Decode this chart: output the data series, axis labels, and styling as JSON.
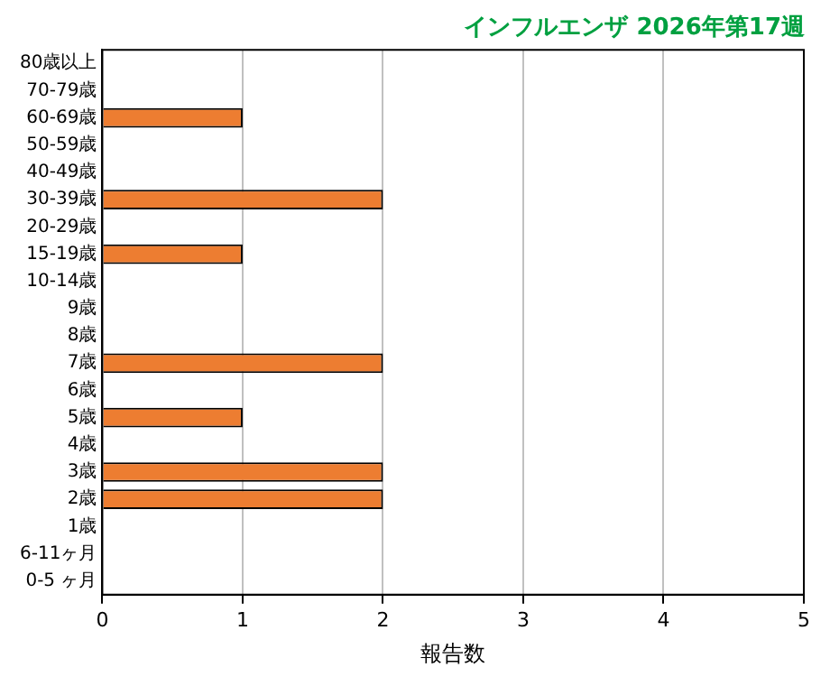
{
  "chart_data": {
    "type": "bar",
    "orientation": "horizontal",
    "title": "インフルエンザ 2026年第17週",
    "xlabel": "報告数",
    "categories": [
      "80歳以上",
      "70-79歳",
      "60-69歳",
      "50-59歳",
      "40-49歳",
      "30-39歳",
      "20-29歳",
      "15-19歳",
      "10-14歳",
      "9歳",
      "8歳",
      "7歳",
      "6歳",
      "5歳",
      "4歳",
      "3歳",
      "2歳",
      "1歳",
      "6-11ヶ月",
      "0-5 ヶ月"
    ],
    "values": [
      0,
      0,
      1,
      0,
      0,
      2,
      0,
      1,
      0,
      0,
      0,
      2,
      0,
      1,
      0,
      2,
      2,
      0,
      0,
      0
    ],
    "color": "#ed7d31",
    "xlim": [
      0,
      5
    ],
    "xticks": [
      0,
      1,
      2,
      3,
      4,
      5
    ],
    "grid": "x",
    "legend": false
  }
}
